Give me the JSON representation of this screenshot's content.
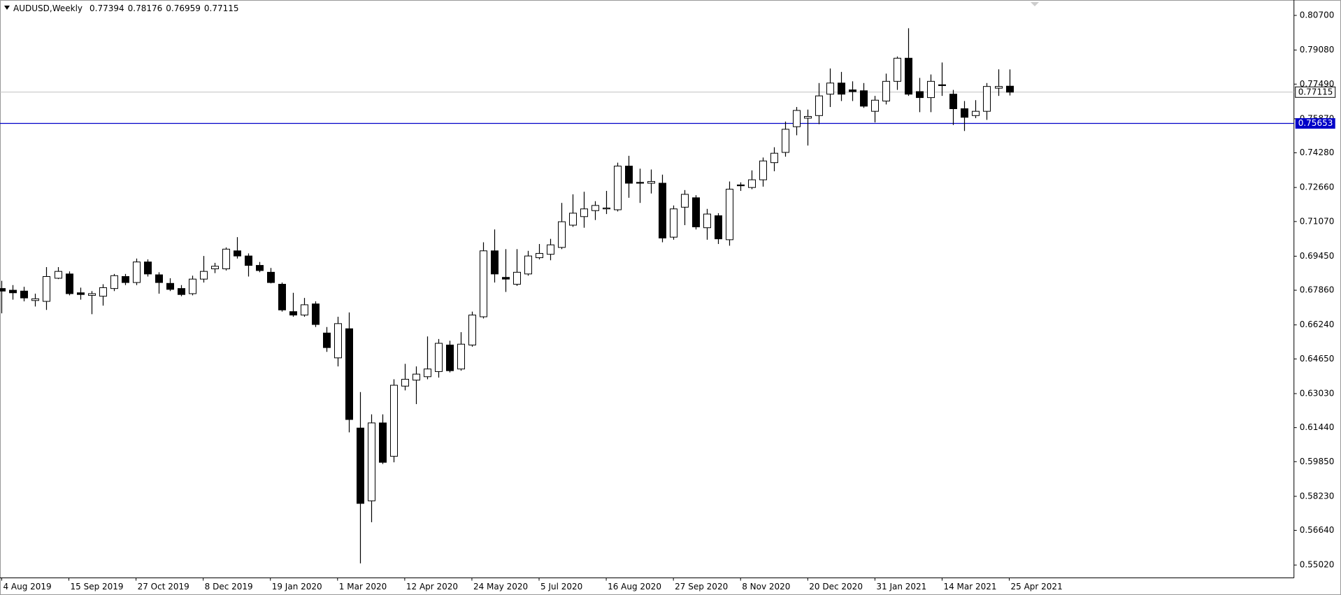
{
  "chart_data": {
    "type": "candlestick",
    "title": "AUDUSD,Weekly",
    "x": [
      "4 Aug 2019",
      "11 Aug 2019",
      "18 Aug 2019",
      "25 Aug 2019",
      "1 Sep 2019",
      "8 Sep 2019",
      "15 Sep 2019",
      "22 Sep 2019",
      "29 Sep 2019",
      "6 Oct 2019",
      "13 Oct 2019",
      "20 Oct 2019",
      "27 Oct 2019",
      "3 Nov 2019",
      "10 Nov 2019",
      "17 Nov 2019",
      "24 Nov 2019",
      "1 Dec 2019",
      "8 Dec 2019",
      "15 Dec 2019",
      "22 Dec 2019",
      "29 Dec 2019",
      "5 Jan 2020",
      "12 Jan 2020",
      "19 Jan 2020",
      "26 Jan 2020",
      "2 Feb 2020",
      "9 Feb 2020",
      "16 Feb 2020",
      "23 Feb 2020",
      "1 Mar 2020",
      "8 Mar 2020",
      "15 Mar 2020",
      "22 Mar 2020",
      "29 Mar 2020",
      "5 Apr 2020",
      "12 Apr 2020",
      "19 Apr 2020",
      "26 Apr 2020",
      "3 May 2020",
      "10 May 2020",
      "17 May 2020",
      "24 May 2020",
      "31 May 2020",
      "7 Jun 2020",
      "14 Jun 2020",
      "21 Jun 2020",
      "28 Jun 2020",
      "5 Jul 2020",
      "12 Jul 2020",
      "19 Jul 2020",
      "26 Jul 2020",
      "2 Aug 2020",
      "9 Aug 2020",
      "16 Aug 2020",
      "23 Aug 2020",
      "30 Aug 2020",
      "6 Sep 2020",
      "13 Sep 2020",
      "20 Sep 2020",
      "27 Sep 2020",
      "4 Oct 2020",
      "11 Oct 2020",
      "18 Oct 2020",
      "25 Oct 2020",
      "1 Nov 2020",
      "8 Nov 2020",
      "15 Nov 2020",
      "22 Nov 2020",
      "29 Nov 2020",
      "6 Dec 2020",
      "13 Dec 2020",
      "20 Dec 2020",
      "27 Dec 2020",
      "3 Jan 2021",
      "10 Jan 2021",
      "17 Jan 2021",
      "24 Jan 2021",
      "31 Jan 2021",
      "7 Feb 2021",
      "14 Feb 2021",
      "21 Feb 2021",
      "28 Feb 2021",
      "7 Mar 2021",
      "14 Mar 2021",
      "21 Mar 2021",
      "28 Mar 2021",
      "4 Apr 2021",
      "11 Apr 2021",
      "18 Apr 2021",
      "25 Apr 2021"
    ],
    "open": [
      0.6794,
      0.6786,
      0.6782,
      0.6738,
      0.6734,
      0.6842,
      0.6862,
      0.6774,
      0.6762,
      0.6758,
      0.6794,
      0.685,
      0.6822,
      0.6918,
      0.6858,
      0.6818,
      0.6794,
      0.677,
      0.6838,
      0.6886,
      0.6886,
      0.697,
      0.6946,
      0.6902,
      0.687,
      0.6814,
      0.6686,
      0.667,
      0.6722,
      0.6586,
      0.647,
      0.6606,
      0.6142,
      0.5802,
      0.6166,
      0.601,
      0.6338,
      0.6366,
      0.6382,
      0.6406,
      0.653,
      0.6418,
      0.653,
      0.6662,
      0.697,
      0.6846,
      0.6814,
      0.6862,
      0.6938,
      0.6954,
      0.6986,
      0.709,
      0.713,
      0.7158,
      0.7166,
      0.7162,
      0.7366,
      0.729,
      0.7286,
      0.7286,
      0.7034,
      0.7174,
      0.7218,
      0.7078,
      0.7134,
      0.7022,
      0.7278,
      0.7266,
      0.7302,
      0.7382,
      0.743,
      0.755,
      0.759,
      0.7602,
      0.7702,
      0.7754,
      0.7722,
      0.7718,
      0.7622,
      0.767,
      0.7762,
      0.787,
      0.7714,
      0.7686,
      0.7746,
      0.7702,
      0.7634,
      0.7602,
      0.7622,
      0.773,
      0.77394
    ],
    "high": [
      0.683,
      0.681,
      0.6802,
      0.677,
      0.6894,
      0.6894,
      0.6874,
      0.6798,
      0.6782,
      0.6814,
      0.6862,
      0.6862,
      0.6934,
      0.693,
      0.687,
      0.6842,
      0.681,
      0.6854,
      0.6946,
      0.6914,
      0.6986,
      0.7034,
      0.6958,
      0.6918,
      0.689,
      0.6822,
      0.6774,
      0.675,
      0.6734,
      0.6614,
      0.6662,
      0.6682,
      0.631,
      0.6206,
      0.6206,
      0.637,
      0.6442,
      0.643,
      0.657,
      0.6558,
      0.655,
      0.659,
      0.6686,
      0.701,
      0.707,
      0.6978,
      0.6978,
      0.697,
      0.7002,
      0.7026,
      0.7194,
      0.7234,
      0.7246,
      0.7202,
      0.725,
      0.7382,
      0.7414,
      0.7354,
      0.735,
      0.7326,
      0.7182,
      0.7254,
      0.723,
      0.7166,
      0.7146,
      0.7294,
      0.729,
      0.7346,
      0.7406,
      0.7454,
      0.7574,
      0.7642,
      0.763,
      0.7754,
      0.7822,
      0.7806,
      0.7762,
      0.7754,
      0.7694,
      0.7798,
      0.7878,
      0.801,
      0.7778,
      0.7794,
      0.785,
      0.7722,
      0.767,
      0.7674,
      0.7754,
      0.7818,
      0.78176
    ],
    "low": [
      0.6678,
      0.6742,
      0.6734,
      0.671,
      0.6694,
      0.6838,
      0.6762,
      0.6742,
      0.6674,
      0.6714,
      0.6782,
      0.681,
      0.681,
      0.685,
      0.677,
      0.6782,
      0.6758,
      0.6762,
      0.6822,
      0.6866,
      0.6878,
      0.6934,
      0.685,
      0.687,
      0.6818,
      0.6686,
      0.6662,
      0.6662,
      0.6614,
      0.6498,
      0.643,
      0.6122,
      0.551,
      0.5702,
      0.5974,
      0.5982,
      0.6318,
      0.6254,
      0.637,
      0.6378,
      0.6402,
      0.641,
      0.6522,
      0.6654,
      0.6822,
      0.6778,
      0.6806,
      0.6854,
      0.693,
      0.6926,
      0.6978,
      0.7082,
      0.7078,
      0.7114,
      0.7142,
      0.7154,
      0.7218,
      0.7194,
      0.7238,
      0.701,
      0.7022,
      0.709,
      0.707,
      0.7022,
      0.7002,
      0.6994,
      0.725,
      0.7258,
      0.727,
      0.7342,
      0.741,
      0.751,
      0.7462,
      0.7562,
      0.7642,
      0.767,
      0.767,
      0.7638,
      0.757,
      0.7654,
      0.7722,
      0.7694,
      0.7618,
      0.7618,
      0.7694,
      0.7558,
      0.753,
      0.759,
      0.7582,
      0.7694,
      0.76959
    ],
    "close": [
      0.6782,
      0.6774,
      0.675,
      0.6746,
      0.685,
      0.6874,
      0.677,
      0.6766,
      0.677,
      0.6798,
      0.6854,
      0.6822,
      0.6918,
      0.6862,
      0.6822,
      0.679,
      0.6766,
      0.6838,
      0.6874,
      0.6898,
      0.6978,
      0.6946,
      0.6902,
      0.6878,
      0.6822,
      0.6694,
      0.667,
      0.6718,
      0.6626,
      0.6518,
      0.663,
      0.6182,
      0.579,
      0.6166,
      0.5982,
      0.6342,
      0.637,
      0.6394,
      0.6418,
      0.6538,
      0.641,
      0.6534,
      0.667,
      0.697,
      0.6862,
      0.6838,
      0.687,
      0.6946,
      0.6958,
      0.6998,
      0.7106,
      0.7146,
      0.7166,
      0.7182,
      0.717,
      0.7366,
      0.7286,
      0.7286,
      0.7294,
      0.703,
      0.7166,
      0.7234,
      0.7082,
      0.7142,
      0.7026,
      0.7258,
      0.7274,
      0.7302,
      0.739,
      0.7426,
      0.7538,
      0.7626,
      0.7598,
      0.7694,
      0.7754,
      0.7702,
      0.7714,
      0.7646,
      0.7674,
      0.7762,
      0.787,
      0.7702,
      0.7686,
      0.7762,
      0.7742,
      0.7634,
      0.7594,
      0.7622,
      0.7738,
      0.7738,
      0.77115
    ],
    "up_color": "#ffffff",
    "down_color": "#000000",
    "ylim": [
      0.5442,
      0.8142
    ],
    "yticks": [
      {
        "value": 0.807,
        "label": "0.80700"
      },
      {
        "value": 0.7908,
        "label": "0.79080"
      },
      {
        "value": 0.7749,
        "label": "0.77490"
      },
      {
        "value": 0.7587,
        "label": "0.75870"
      },
      {
        "value": 0.7428,
        "label": "0.74280"
      },
      {
        "value": 0.7266,
        "label": "0.72660"
      },
      {
        "value": 0.7107,
        "label": "0.71070"
      },
      {
        "value": 0.6945,
        "label": "0.69450"
      },
      {
        "value": 0.6786,
        "label": "0.67860"
      },
      {
        "value": 0.6624,
        "label": "0.66240"
      },
      {
        "value": 0.6465,
        "label": "0.64650"
      },
      {
        "value": 0.6303,
        "label": "0.63030"
      },
      {
        "value": 0.6144,
        "label": "0.61440"
      },
      {
        "value": 0.5985,
        "label": "0.59850"
      },
      {
        "value": 0.5823,
        "label": "0.58230"
      },
      {
        "value": 0.5664,
        "label": "0.56640"
      },
      {
        "value": 0.5502,
        "label": "0.55020"
      }
    ],
    "level": 0.75653,
    "level_color": "#0000c8",
    "grid": false
  }
}
